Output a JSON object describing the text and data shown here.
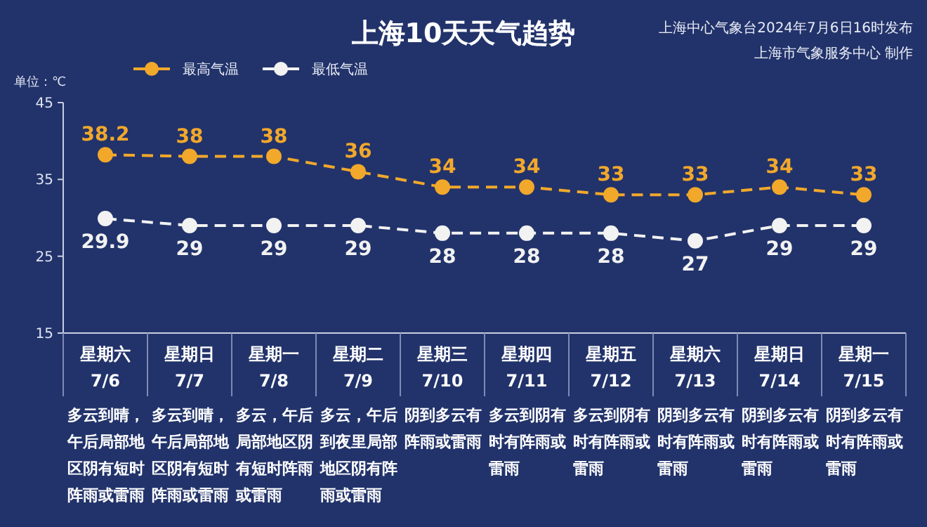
{
  "chart_data": {
    "type": "line",
    "title": "上海10天天气趋势",
    "ylabel": "单位：℃",
    "categories": [
      "星期六 7/6",
      "星期日 7/7",
      "星期一 7/8",
      "星期二 7/9",
      "星期三 7/10",
      "星期四 7/11",
      "星期五 7/12",
      "星期六 7/13",
      "星期日 7/14",
      "星期一 7/15"
    ],
    "series": [
      {
        "name": "最高气温",
        "color": "#f2a82b",
        "values": [
          38.2,
          38,
          38,
          36,
          34,
          34,
          33,
          33,
          34,
          33
        ]
      },
      {
        "name": "最低气温",
        "color": "#f2f2f2",
        "values": [
          29.9,
          29,
          29,
          29,
          28,
          28,
          28,
          27,
          29,
          29
        ]
      }
    ],
    "ylim": [
      15,
      45
    ],
    "yticks": [
      15,
      25,
      35,
      45
    ],
    "data_labels": true,
    "legend": "top left",
    "marker": "circle",
    "line_style": "dashed",
    "annotations": [
      "上海中心气象台2024年7月6日16时发布",
      "上海市气象服务中心 制作",
      "多云到晴，午后局部地区阴有短时阵雨或雷雨",
      "多云到晴，午后局部地区阴有短时阵雨或雷雨",
      "多云，午后局部地区阴有短时阵雨或雷雨",
      "多云，午后到夜里局部地区阴有阵雨或雷雨",
      "阴到多云有阵雨或雷雨",
      "多云到阴有时有阵雨或雷雨",
      "多云到阴有时有阵雨或雷雨",
      "阴到多云有时有阵雨或雷雨",
      "阴到多云有时有阵雨或雷雨",
      "阴到多云有时有阵雨或雷雨"
    ]
  }
}
